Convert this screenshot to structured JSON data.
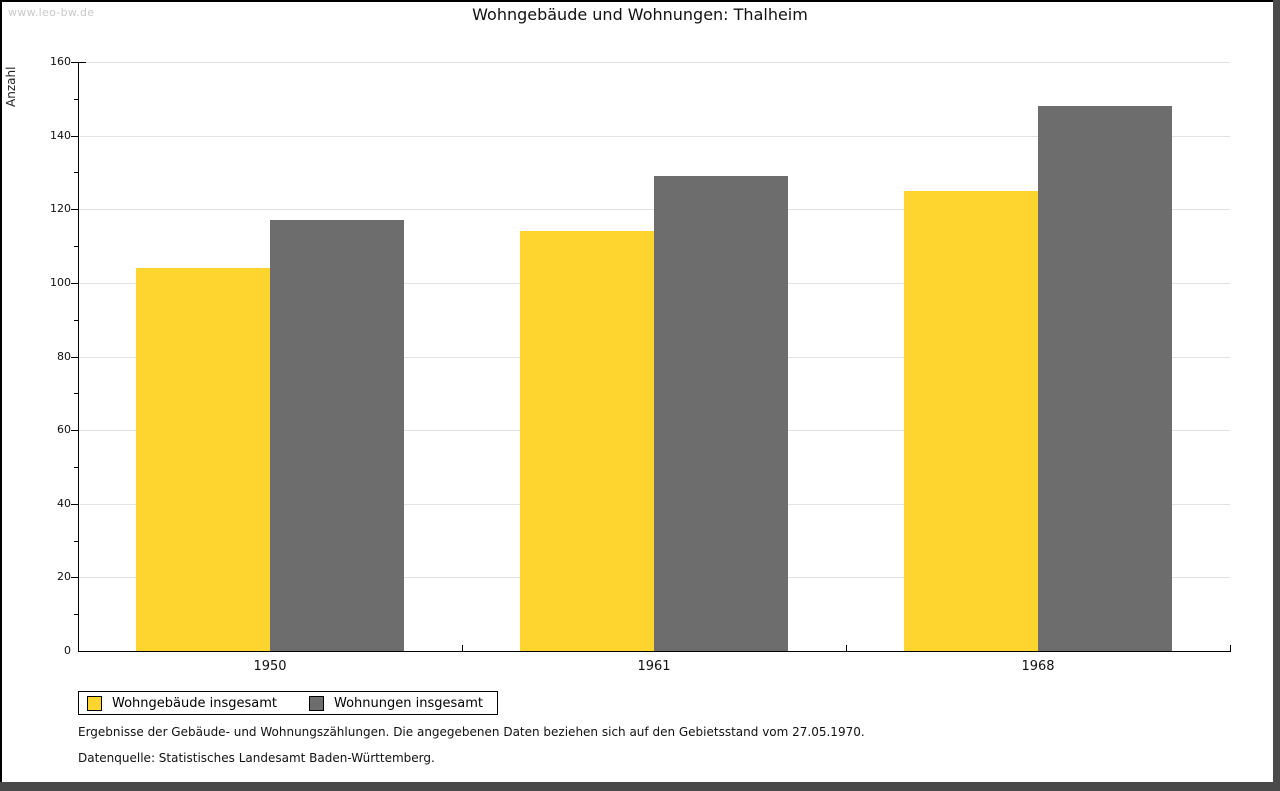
{
  "page": {
    "watermark": "www.leo-bw.de"
  },
  "colors": {
    "bar_yellow": "#FDD52E",
    "bar_gray": "#6D6D6D",
    "gridline": "#E3E3E3",
    "axis": "#000000",
    "watermark_text": "#C9C9C9",
    "frame_thin": "#000000",
    "frame_shadow": "#4A4A4A"
  },
  "chart_data": {
    "type": "bar",
    "title": "Wohngebäude und Wohnungen: Thalheim",
    "ylabel": "Anzahl",
    "xlabel": "",
    "categories": [
      "1950",
      "1961",
      "1968"
    ],
    "series": [
      {
        "name": "Wohngebäude insgesamt",
        "color": "#FDD52E",
        "values": [
          104,
          114,
          125
        ]
      },
      {
        "name": "Wohnungen insgesamt",
        "color": "#6D6D6D",
        "values": [
          117,
          129,
          148
        ]
      }
    ],
    "ylim": [
      0,
      160
    ],
    "y_major_step": 20,
    "y_minor_step": 10,
    "grid": true,
    "legend_position": "bottom-left"
  },
  "footnotes": [
    "Ergebnisse der Gebäude- und Wohnungszählungen. Die angegebenen Daten beziehen sich auf den Gebietsstand vom 27.05.1970.",
    "Datenquelle: Statistisches Landesamt Baden-Württemberg."
  ]
}
